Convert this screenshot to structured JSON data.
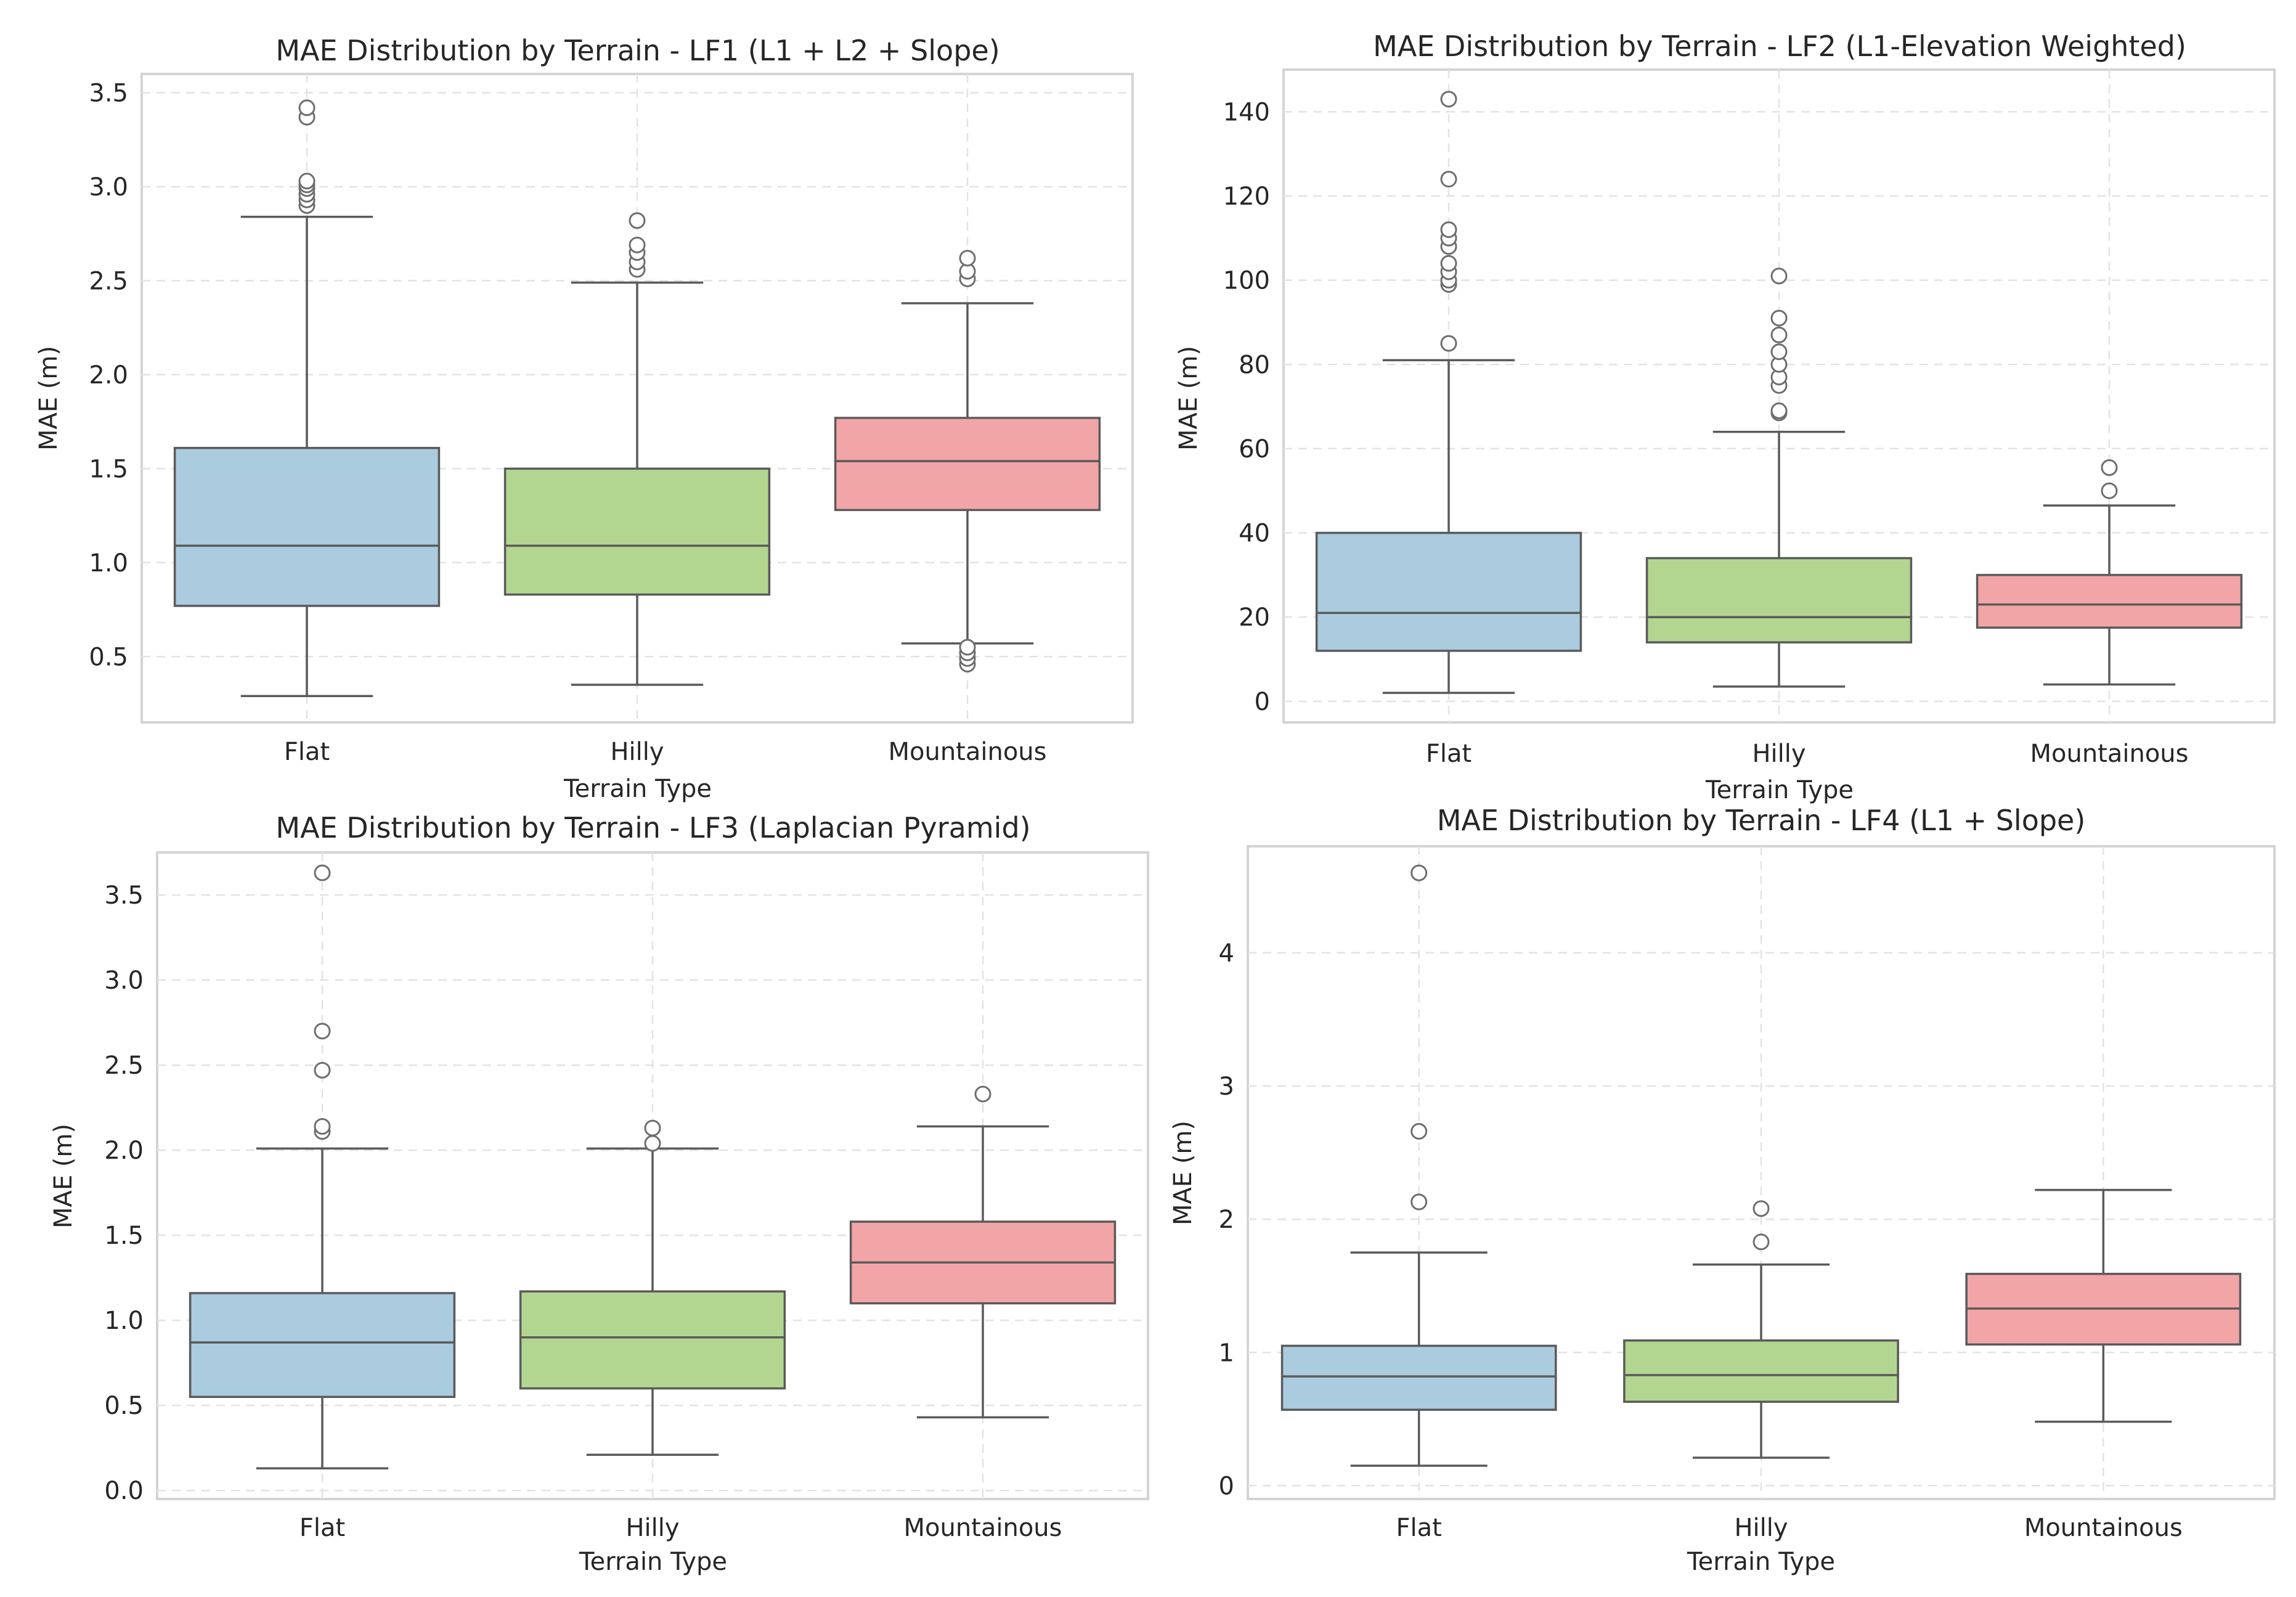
{
  "chart_data": [
    {
      "type": "box",
      "title": "MAE Distribution by Terrain - LF1 (L1 + L2 + Slope)",
      "xlabel": "Terrain Type",
      "ylabel": "MAE (m)",
      "ylim": [
        0.15,
        3.6
      ],
      "yticks": [
        0.5,
        1.0,
        1.5,
        2.0,
        2.5,
        3.0,
        3.5
      ],
      "yticklabels": [
        "0.5",
        "1.0",
        "1.5",
        "2.0",
        "2.5",
        "3.0",
        "3.5"
      ],
      "categories": [
        "Flat",
        "Hilly",
        "Mountainous"
      ],
      "boxes": [
        {
          "whislo": 0.29,
          "q1": 0.77,
          "med": 1.09,
          "q3": 1.61,
          "whishi": 2.84,
          "fliers": [
            2.9,
            2.93,
            2.96,
            2.99,
            3.01,
            3.03,
            3.37,
            3.42
          ]
        },
        {
          "whislo": 0.35,
          "q1": 0.83,
          "med": 1.09,
          "q3": 1.5,
          "whishi": 2.49,
          "fliers": [
            2.56,
            2.6,
            2.65,
            2.69,
            2.82
          ]
        },
        {
          "whislo": 0.57,
          "q1": 1.28,
          "med": 1.54,
          "q3": 1.77,
          "whishi": 2.38,
          "fliers": [
            0.46,
            0.49,
            0.52,
            0.55,
            2.51,
            2.55,
            2.62
          ]
        }
      ]
    },
    {
      "type": "box",
      "title": "MAE Distribution by Terrain - LF2 (L1-Elevation Weighted)",
      "xlabel": "Terrain Type",
      "ylabel": "MAE (m)",
      "ylim": [
        -5,
        150
      ],
      "yticks": [
        0,
        20,
        40,
        60,
        80,
        100,
        120,
        140
      ],
      "yticklabels": [
        "0",
        "20",
        "40",
        "60",
        "80",
        "100",
        "120",
        "140"
      ],
      "categories": [
        "Flat",
        "Hilly",
        "Mountainous"
      ],
      "boxes": [
        {
          "whislo": 2,
          "q1": 12,
          "med": 21,
          "q3": 40,
          "whishi": 81,
          "fliers": [
            85,
            99,
            100,
            102,
            104,
            108,
            110,
            112,
            124,
            143
          ]
        },
        {
          "whislo": 3.5,
          "q1": 14,
          "med": 20,
          "q3": 34,
          "whishi": 64,
          "fliers": [
            68.5,
            69,
            75,
            77,
            80,
            83,
            87,
            91,
            101
          ]
        },
        {
          "whislo": 4,
          "q1": 17.5,
          "med": 23,
          "q3": 30,
          "whishi": 46.5,
          "fliers": [
            50,
            55.5
          ]
        }
      ]
    },
    {
      "type": "box",
      "title": "MAE Distribution by Terrain - LF3 (Laplacian Pyramid)",
      "xlabel": "Terrain Type",
      "ylabel": "MAE (m)",
      "ylim": [
        -0.05,
        3.75
      ],
      "yticks": [
        0.0,
        0.5,
        1.0,
        1.5,
        2.0,
        2.5,
        3.0,
        3.5
      ],
      "yticklabels": [
        "0.0",
        "0.5",
        "1.0",
        "1.5",
        "2.0",
        "2.5",
        "3.0",
        "3.5"
      ],
      "categories": [
        "Flat",
        "Hilly",
        "Mountainous"
      ],
      "boxes": [
        {
          "whislo": 0.13,
          "q1": 0.55,
          "med": 0.87,
          "q3": 1.16,
          "whishi": 2.01,
          "fliers": [
            2.11,
            2.14,
            2.47,
            2.7,
            3.63
          ]
        },
        {
          "whislo": 0.21,
          "q1": 0.6,
          "med": 0.9,
          "q3": 1.17,
          "whishi": 2.01,
          "fliers": [
            2.04,
            2.13
          ]
        },
        {
          "whislo": 0.43,
          "q1": 1.1,
          "med": 1.34,
          "q3": 1.58,
          "whishi": 2.14,
          "fliers": [
            2.33
          ]
        }
      ]
    },
    {
      "type": "box",
      "title": "MAE Distribution by Terrain - LF4 (L1 + Slope)",
      "xlabel": "Terrain Type",
      "ylabel": "MAE (m)",
      "ylim": [
        -0.1,
        4.8
      ],
      "yticks": [
        0,
        1,
        2,
        3,
        4
      ],
      "yticklabels": [
        "0",
        "1",
        "2",
        "3",
        "4"
      ],
      "categories": [
        "Flat",
        "Hilly",
        "Mountainous"
      ],
      "boxes": [
        {
          "whislo": 0.15,
          "q1": 0.57,
          "med": 0.82,
          "q3": 1.05,
          "whishi": 1.75,
          "fliers": [
            2.13,
            2.66,
            4.6
          ]
        },
        {
          "whislo": 0.21,
          "q1": 0.63,
          "med": 0.83,
          "q3": 1.09,
          "whishi": 1.66,
          "fliers": [
            1.83,
            2.08
          ]
        },
        {
          "whislo": 0.48,
          "q1": 1.06,
          "med": 1.33,
          "q3": 1.59,
          "whishi": 2.22,
          "fliers": []
        }
      ]
    }
  ],
  "colors": {
    "categories": [
      "#abcbde",
      "#b2d690",
      "#f2a5a6"
    ],
    "frame": "#d4d4d4",
    "grid": "#e3e3e3",
    "line": "#5a5a5a",
    "text": "#262626"
  }
}
